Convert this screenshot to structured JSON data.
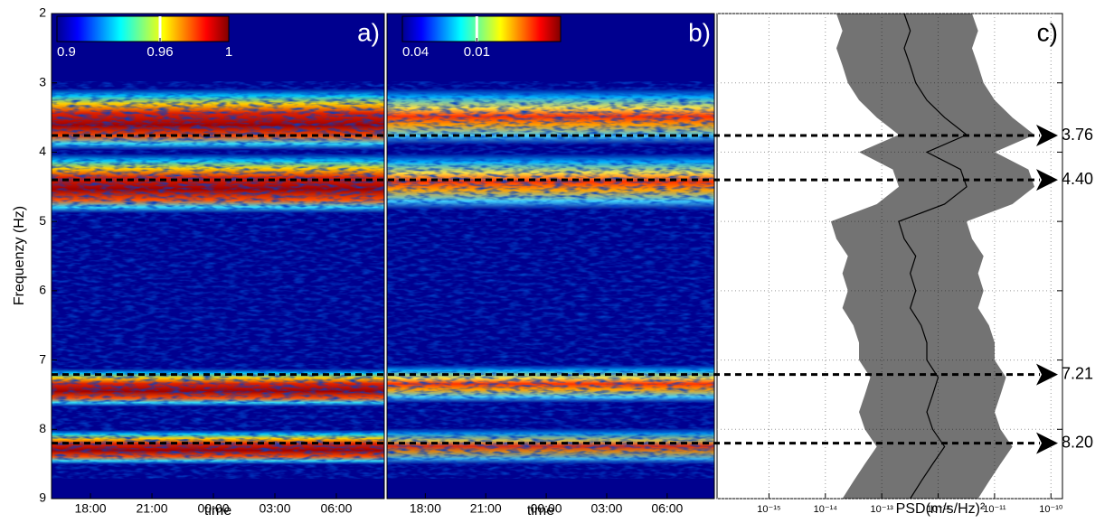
{
  "chart_data": [
    {
      "type": "heatmap",
      "panel_label": "a)",
      "ylabel": "Frequenzy (Hz)",
      "xlabel": "time",
      "ylim": [
        2,
        9
      ],
      "yticks": [
        2,
        3,
        4,
        5,
        6,
        7,
        8,
        9
      ],
      "xlim": [
        16.1,
        32.34
      ],
      "xticks": [
        {
          "value": 18,
          "label": "18:00"
        },
        {
          "value": 21,
          "label": "21:00"
        },
        {
          "value": 24,
          "label": "00:00"
        },
        {
          "value": 27,
          "label": "03:00"
        },
        {
          "value": 30,
          "label": "06:00"
        }
      ],
      "colorbar": {
        "clim": [
          0.9,
          1
        ],
        "ticks": [
          0.9,
          0.96,
          1
        ],
        "highlight": 0.96
      }
    },
    {
      "type": "heatmap",
      "panel_label": "b)",
      "xlabel": "time",
      "ylim": [
        2,
        9
      ],
      "xlim": [
        16.1,
        32.34
      ],
      "xticks": [
        {
          "value": 18,
          "label": "18:00"
        },
        {
          "value": 21,
          "label": "21:00"
        },
        {
          "value": 24,
          "label": "00:00"
        },
        {
          "value": 27,
          "label": "03:00"
        },
        {
          "value": 30,
          "label": "06:00"
        }
      ],
      "colorbar": {
        "clim": [
          0.04,
          0.0021
        ],
        "log": true,
        "ticks": [
          0.04,
          0.01
        ],
        "highlight": 0.01
      }
    },
    {
      "type": "line",
      "panel_label": "c)",
      "xlabel": "PSD(m/s/Hz)²",
      "log_x": true,
      "grid": true,
      "xlim": [
        1.2e-16,
        1.6e-10
      ],
      "xticks": [
        {
          "value": 1e-15,
          "label": "10⁻¹⁵"
        },
        {
          "value": 1e-14,
          "label": "10⁻¹⁴"
        },
        {
          "value": 1e-13,
          "label": "10⁻¹³"
        },
        {
          "value": 1e-12,
          "label": "10⁻¹²"
        },
        {
          "value": 1e-11,
          "label": "10⁻¹¹"
        },
        {
          "value": 1e-10,
          "label": "10⁻¹⁰"
        }
      ],
      "ylim": [
        2,
        9
      ],
      "y": [
        2,
        2.25,
        2.5,
        2.75,
        3,
        3.25,
        3.5,
        3.75,
        4,
        4.25,
        4.5,
        4.75,
        5,
        5.25,
        5.5,
        5.75,
        6,
        6.25,
        6.5,
        6.75,
        7,
        7.25,
        7.5,
        7.75,
        8,
        8.25,
        8.5,
        8.75,
        9
      ],
      "series": [
        {
          "color": "#000000",
          "values": [
            2.5e-13,
            3.2e-13,
            2.5e-13,
            3.2e-13,
            4e-13,
            6.3e-13,
            1.3e-12,
            3.2e-12,
            6.3e-13,
            2.5e-12,
            3.2e-12,
            1.3e-12,
            2e-13,
            2.5e-13,
            4e-13,
            3.2e-13,
            4e-13,
            3.2e-13,
            5e-13,
            6.3e-13,
            6.3e-13,
            1e-12,
            8e-13,
            6.3e-13,
            8e-13,
            1.3e-12,
            8e-13,
            5e-13,
            3.2e-13
          ]
        }
      ],
      "hlines": {
        "values": [
          3.76,
          4.4,
          7.21,
          8.2
        ],
        "value_labels": [
          "3.76",
          "4.40",
          "7.21",
          "8.20"
        ]
      }
    }
  ]
}
